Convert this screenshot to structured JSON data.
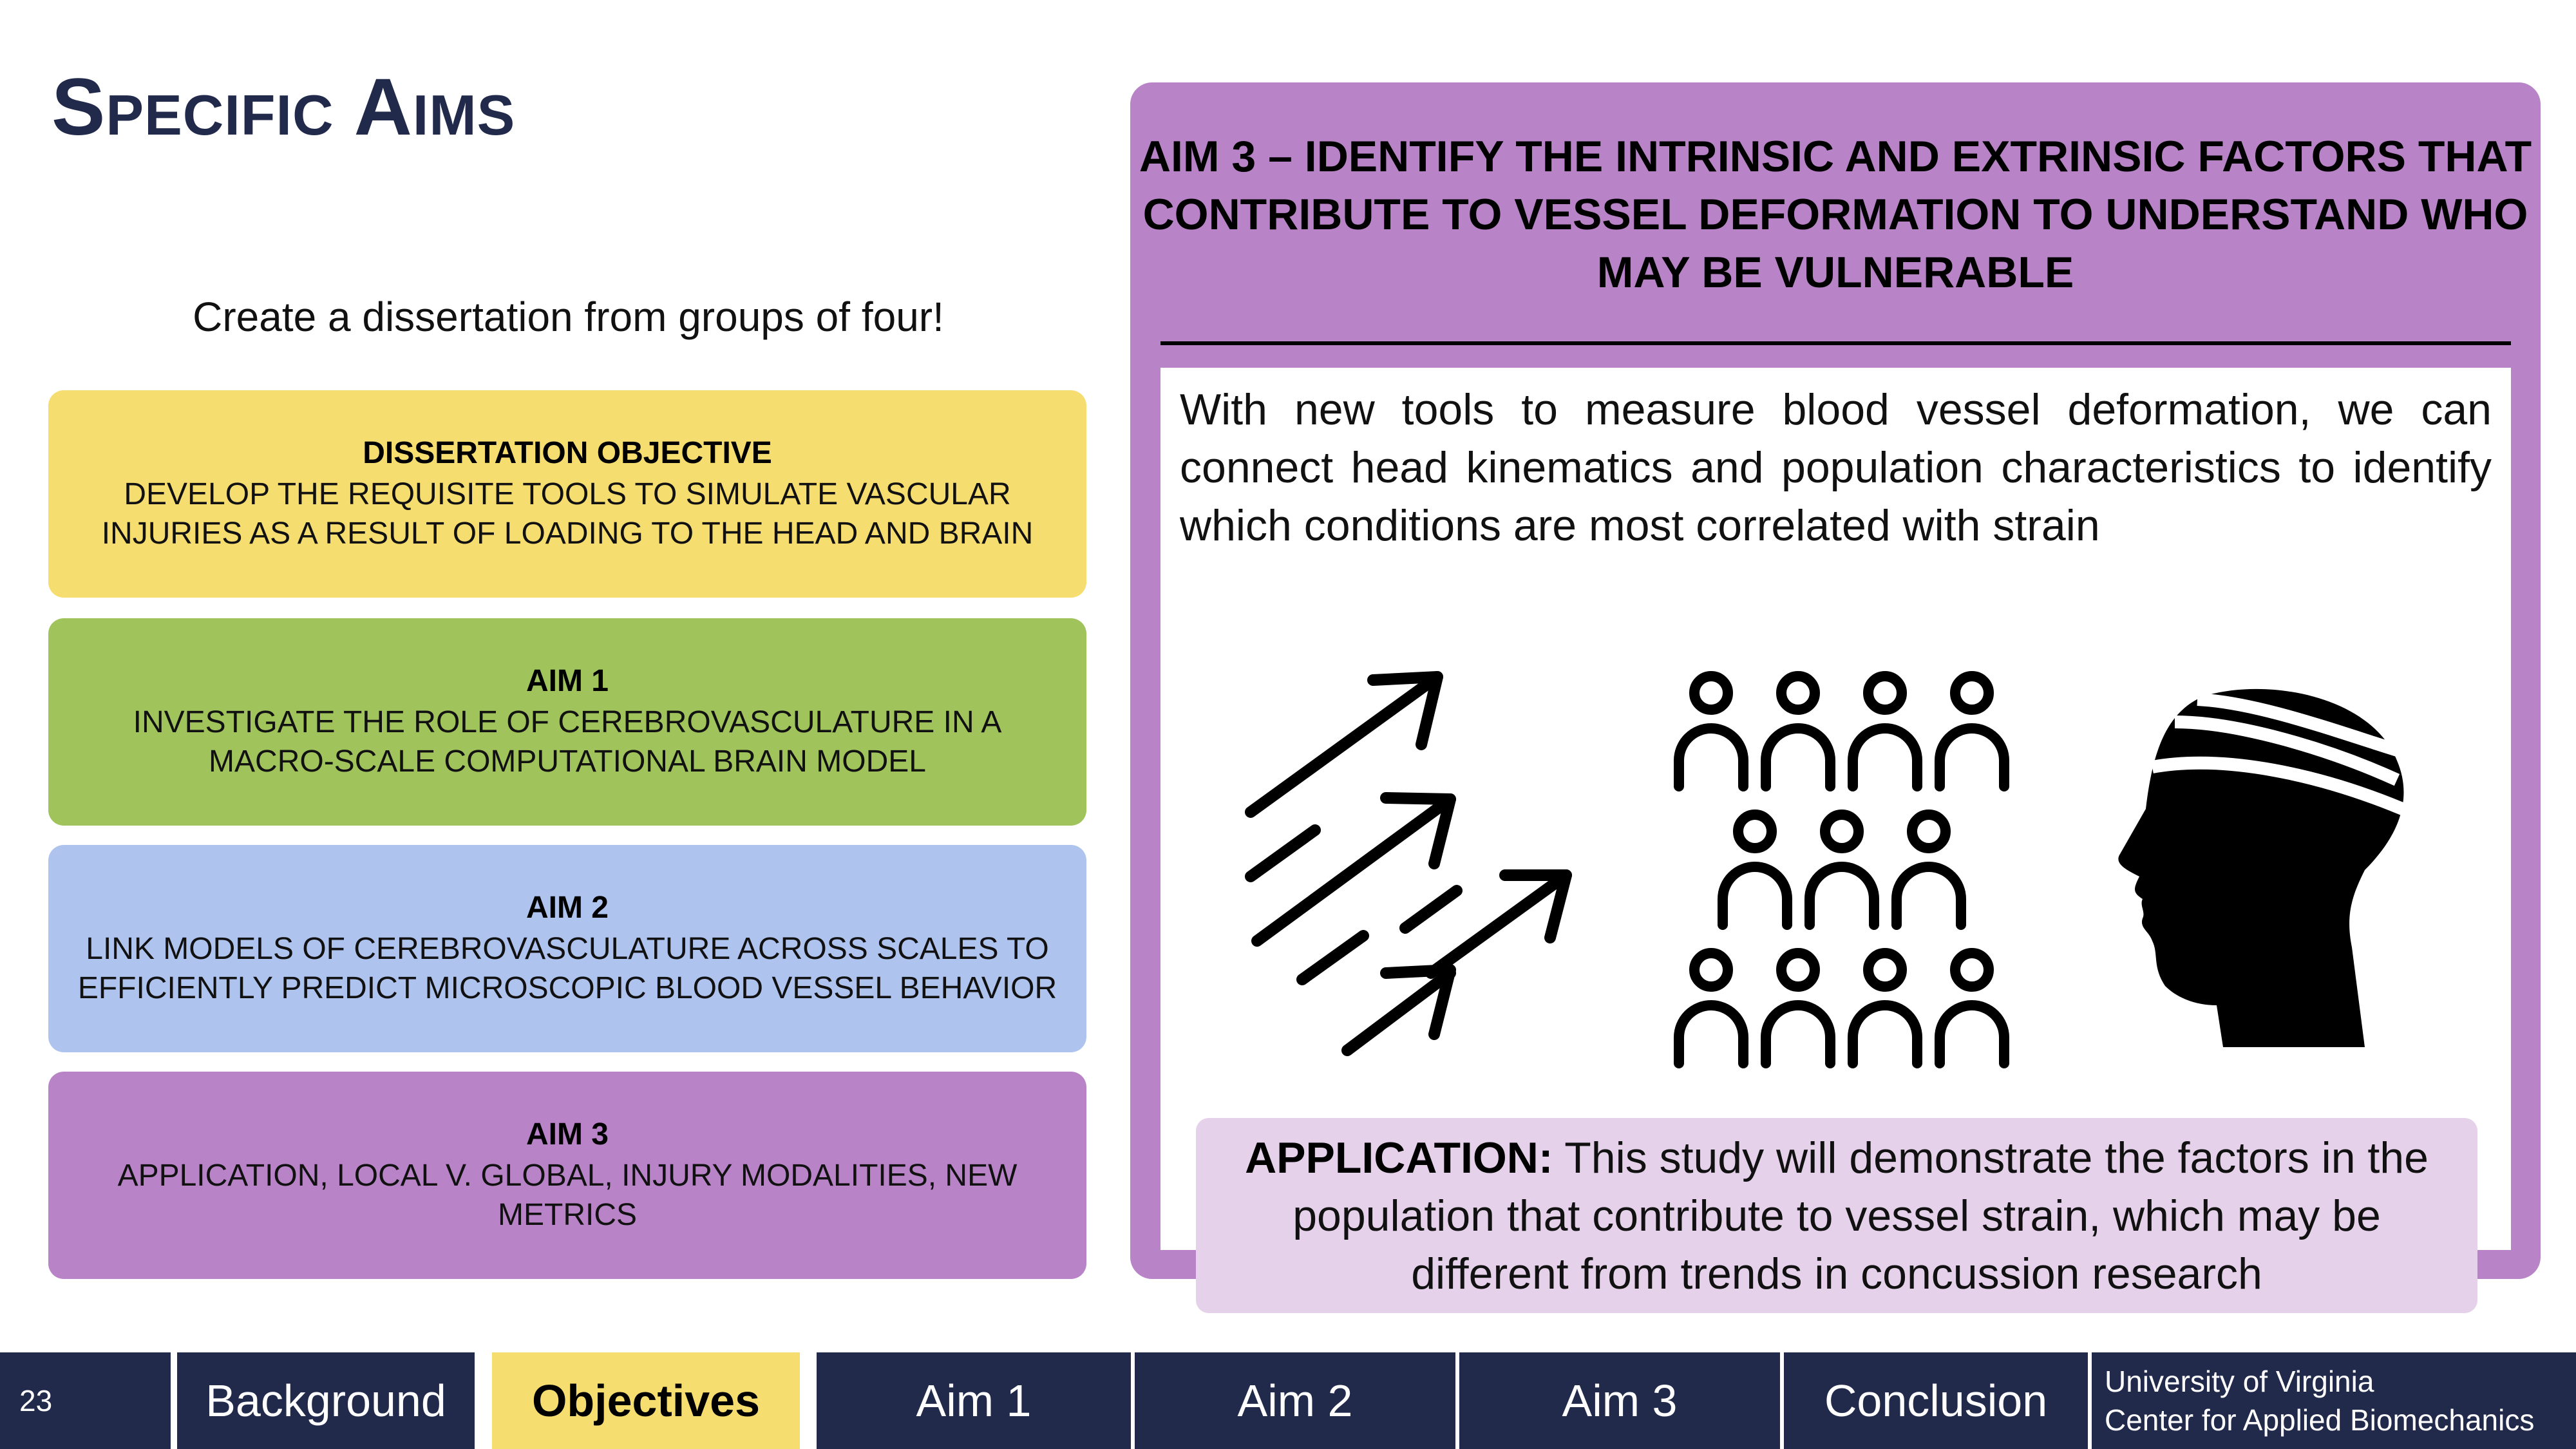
{
  "slide": {
    "title": "Specific Aims",
    "subtitle": "Create a dissertation from groups of four!"
  },
  "aims": [
    {
      "heading": "DISSERTATION OBJECTIVE",
      "text": "Develop the requisite tools to simulate vascular injuries as a result of loading to the head and brain",
      "color": "#f6dd6f"
    },
    {
      "heading": "AIM 1",
      "text": "Investigate the role of cerebrovasculature in a macro-scale computational brain model",
      "color": "#a0c35c"
    },
    {
      "heading": "AIM 2",
      "text": "Link models of cerebrovasculature across scales to efficiently predict microscopic blood vessel behavior",
      "color": "#afc3ef"
    },
    {
      "heading": "AIM 3",
      "text": "Application, local v. global, injury modalities, new metrics",
      "color": "#b883c7"
    }
  ],
  "detail": {
    "heading": "Aim 3 – Identify the intrinsic and extrinsic factors that contribute to vessel deformation to understand who may be vulnerable",
    "description": "With new tools to measure blood vessel deformation, we can connect head kinematics and population characteristics to identify which conditions are most correlated with strain",
    "icons": [
      "arrows-icon",
      "population-icon",
      "injured-head-icon"
    ],
    "application_label": "APPLICATION:",
    "application_text": " This study will demonstrate the factors in the population that contribute to vessel strain, which may be different from trends in concussion research"
  },
  "nav": {
    "page_number": "23",
    "tabs": [
      {
        "label": "Background",
        "active": false
      },
      {
        "label": "Objectives",
        "active": true
      },
      {
        "label": "Aim 1",
        "active": false
      },
      {
        "label": "Aim 2",
        "active": false
      },
      {
        "label": "Aim 3",
        "active": false
      },
      {
        "label": "Conclusion",
        "active": false
      }
    ],
    "org_line1": "University of Virginia",
    "org_line2": "Center for Applied Biomechanics"
  },
  "colors": {
    "navy": "#222a4c",
    "yellow": "#f6dd6f",
    "green": "#a0c35c",
    "blue": "#afc3ef",
    "purple": "#b883c7",
    "light_purple": "#e5d1ea"
  }
}
